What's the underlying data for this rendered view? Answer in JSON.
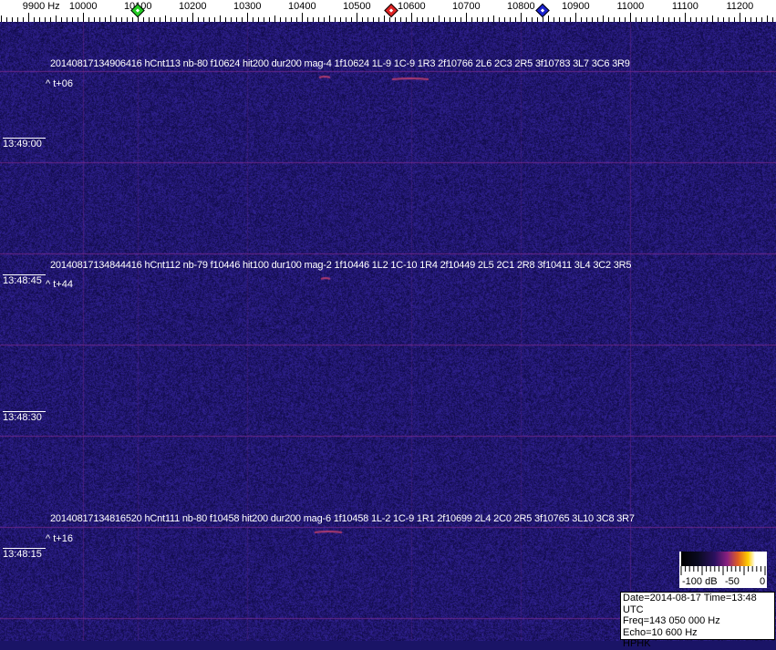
{
  "chart_data": {
    "type": "heatmap",
    "x_unit": "Hz",
    "x_ticks": [
      "9900 Hz",
      "10000",
      "10100",
      "10200",
      "10300",
      "10400",
      "10500",
      "10600",
      "10700",
      "10800",
      "10900",
      "11000",
      "11100",
      "11200"
    ],
    "x_tick_values": [
      9900,
      10000,
      10100,
      10200,
      10300,
      10400,
      10500,
      10600,
      10700,
      10800,
      10900,
      11000,
      11100,
      11200
    ],
    "xlim": [
      9848,
      11266
    ],
    "y_time_labels": [
      "13:49:00",
      "13:48:45",
      "13:48:30",
      "13:48:15"
    ],
    "markers": [
      {
        "color": "#22cc22",
        "freq": 10100
      },
      {
        "color": "#dd2222",
        "freq": 10563
      },
      {
        "color": "#1a22cc",
        "freq": 10840
      }
    ],
    "detections": [
      {
        "text": "20140817134906416 hCnt113 nb-80 f10624 hit200 dur200 mag-4 1f10624 1L-9 1C-9 1R3 2f10766 2L6 2C3 2R5 3f10783 3L7 3C6 3R9",
        "offset": "^ t+06"
      },
      {
        "text": "20140817134844416 hCnt112 nb-79 f10446 hit100 dur100 mag-2 1f10446 1L2 1C-10 1R4 2f10449 2L5 2C1 2R8 3f10411 3L4 3C2 3R5",
        "offset": "^ t+44"
      },
      {
        "text": "20140817134816520 hCnt111 nb-80 f10458 hit200 dur200 mag-6 1f10458 1L-2 1C-9 1R1 2f10699 2L4 2C0 2R5 3f10765 3L10 3C8 3R7",
        "offset": "^ t+16"
      }
    ],
    "colorbar": {
      "labels": [
        "-100 dB",
        "-50",
        "0"
      ],
      "range": [
        -100,
        0
      ],
      "unit": "dB"
    },
    "background_color": "#1a1466",
    "grid_color": "#7a2a90"
  },
  "info": {
    "date_line": "Date=2014-08-17 Time=13:48 UTC",
    "freq_line": "Freq=143 050 000 Hz",
    "echo_line": "Echo=10 600 Hz",
    "station": "HPHK"
  }
}
